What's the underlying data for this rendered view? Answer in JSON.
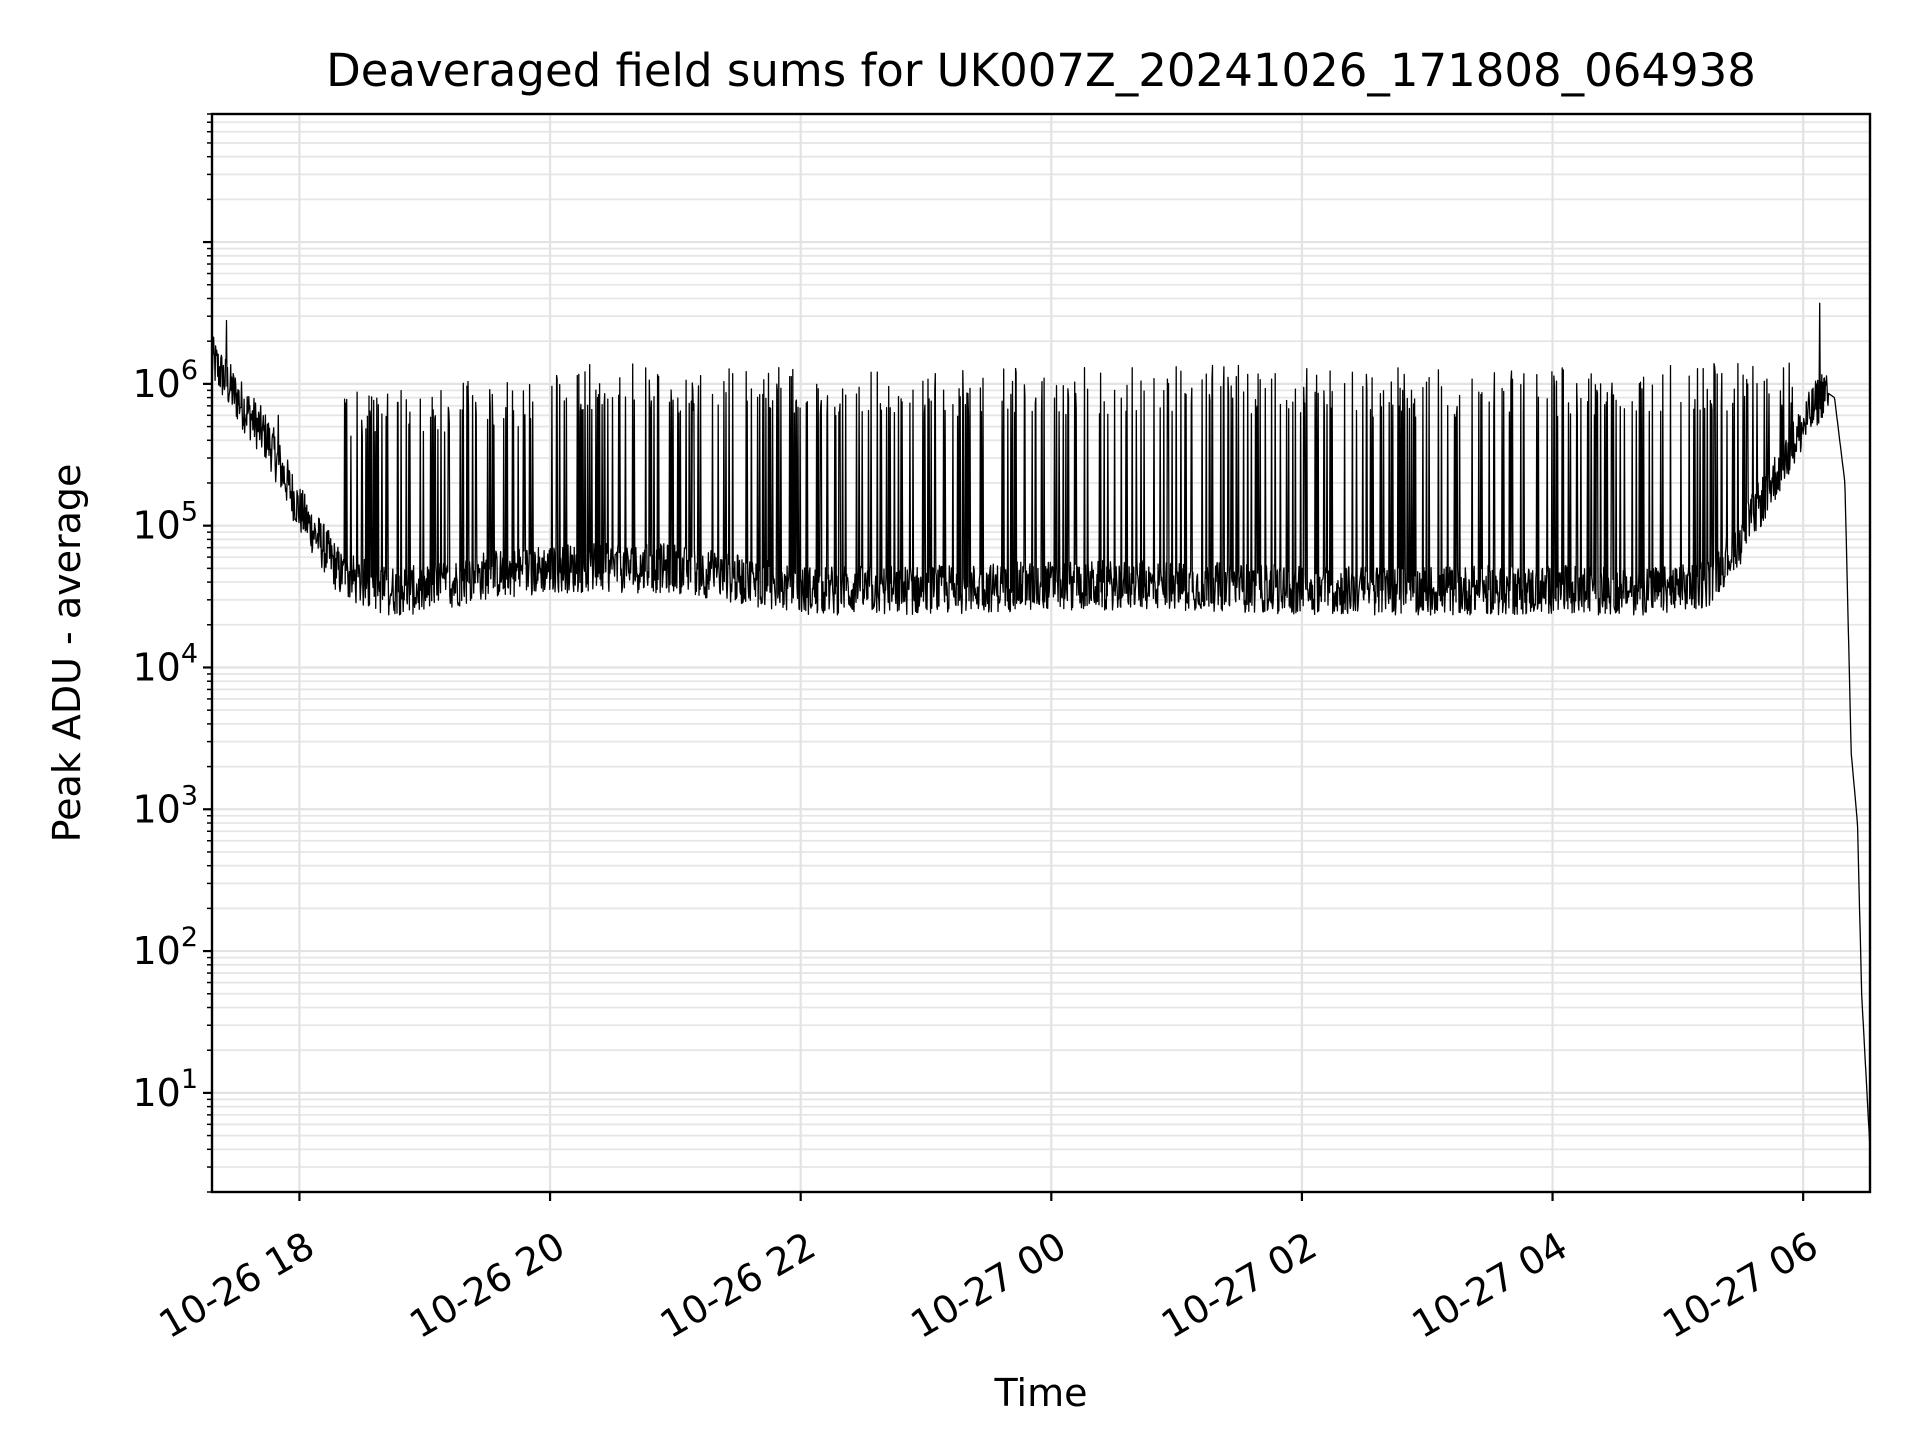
{
  "chart_data": {
    "type": "line",
    "title": "Deaveraged field sums for UK007Z_20241026_171808_064938",
    "xlabel": "Time",
    "ylabel": "Peak ADU - average",
    "yscale": "log",
    "ylim": [
      2,
      80000000
    ],
    "xlim": [
      "2024-10-26T17:18:08",
      "2024-10-27T06:32:00"
    ],
    "grid": "on (major and minor)",
    "line_color": "#000000",
    "xticks": [
      {
        "value": "2024-10-26T18:00",
        "label": "10-26 18"
      },
      {
        "value": "2024-10-26T20:00",
        "label": "10-26 20"
      },
      {
        "value": "2024-10-26T22:00",
        "label": "10-26 22"
      },
      {
        "value": "2024-10-27T00:00",
        "label": "10-27 00"
      },
      {
        "value": "2024-10-27T02:00",
        "label": "10-27 02"
      },
      {
        "value": "2024-10-27T04:00",
        "label": "10-27 04"
      },
      {
        "value": "2024-10-27T06:00",
        "label": "10-27 06"
      }
    ],
    "yticks": [
      {
        "value": 10,
        "base": "10",
        "exp": "1"
      },
      {
        "value": 100,
        "base": "10",
        "exp": "2"
      },
      {
        "value": 1000,
        "base": "10",
        "exp": "3"
      },
      {
        "value": 10000,
        "base": "10",
        "exp": "4"
      },
      {
        "value": 100000,
        "base": "10",
        "exp": "5"
      },
      {
        "value": 1000000,
        "base": "10",
        "exp": "6"
      }
    ],
    "series": [
      {
        "baseline_envelope": {
          "x": [
            "2024-10-26T17:18",
            "2024-10-26T17:30",
            "2024-10-26T17:45",
            "2024-10-26T18:00",
            "2024-10-26T18:20",
            "2024-10-26T18:40",
            "2024-10-26T19:00",
            "2024-10-26T19:30",
            "2024-10-26T20:00",
            "2024-10-26T21:00",
            "2024-10-26T22:00",
            "2024-10-26T23:00",
            "2024-10-27T00:00",
            "2024-10-27T01:00",
            "2024-10-27T02:00",
            "2024-10-27T03:00",
            "2024-10-27T04:00",
            "2024-10-27T05:00",
            "2024-10-27T05:15",
            "2024-10-27T05:30",
            "2024-10-27T05:45",
            "2024-10-27T06:00",
            "2024-10-27T06:10",
            "2024-10-27T06:15",
            "2024-10-27T06:20",
            "2024-10-27T06:23",
            "2024-10-27T06:26",
            "2024-10-27T06:28",
            "2024-10-27T06:32"
          ],
          "y": [
            1500000,
            800000,
            400000,
            130000,
            45000,
            35000,
            35000,
            45000,
            50000,
            50000,
            35000,
            35000,
            38000,
            38000,
            35000,
            35000,
            35000,
            35000,
            40000,
            80000,
            200000,
            500000,
            900000,
            800000,
            200000,
            2500,
            800,
            50,
            4
          ]
        },
        "spikes": [
          {
            "x": "2024-10-26T17:25",
            "y": 2800000
          },
          {
            "x": "2024-10-26T17:50",
            "y": 600000
          },
          {
            "x": "2024-10-26T18:30",
            "y": 950000
          },
          {
            "x": "2024-10-26T19:00",
            "y": 1000000
          },
          {
            "x": "2024-10-26T19:30",
            "y": 1050000
          },
          {
            "x": "2024-10-26T20:00",
            "y": 1200000
          },
          {
            "x": "2024-10-26T20:30",
            "y": 1400000
          },
          {
            "x": "2024-10-26T21:00",
            "y": 1300000
          },
          {
            "x": "2024-10-26T21:30",
            "y": 1300000
          },
          {
            "x": "2024-10-26T22:00",
            "y": 1350000
          },
          {
            "x": "2024-10-26T22:30",
            "y": 1300000
          },
          {
            "x": "2024-10-26T23:00",
            "y": 1300000
          },
          {
            "x": "2024-10-26T23:30",
            "y": 1300000
          },
          {
            "x": "2024-10-27T00:00",
            "y": 1300000
          },
          {
            "x": "2024-10-27T00:30",
            "y": 1350000
          },
          {
            "x": "2024-10-27T01:00",
            "y": 1400000
          },
          {
            "x": "2024-10-27T01:30",
            "y": 1350000
          },
          {
            "x": "2024-10-27T02:00",
            "y": 1300000
          },
          {
            "x": "2024-10-27T02:30",
            "y": 1300000
          },
          {
            "x": "2024-10-27T03:00",
            "y": 1300000
          },
          {
            "x": "2024-10-27T03:30",
            "y": 1300000
          },
          {
            "x": "2024-10-27T04:00",
            "y": 1300000
          },
          {
            "x": "2024-10-27T04:30",
            "y": 1300000
          },
          {
            "x": "2024-10-27T05:00",
            "y": 1350000
          },
          {
            "x": "2024-10-27T05:30",
            "y": 1400000
          },
          {
            "x": "2024-10-27T05:50",
            "y": 1500000
          },
          {
            "x": "2024-10-27T06:08",
            "y": 3700000
          }
        ]
      }
    ]
  }
}
